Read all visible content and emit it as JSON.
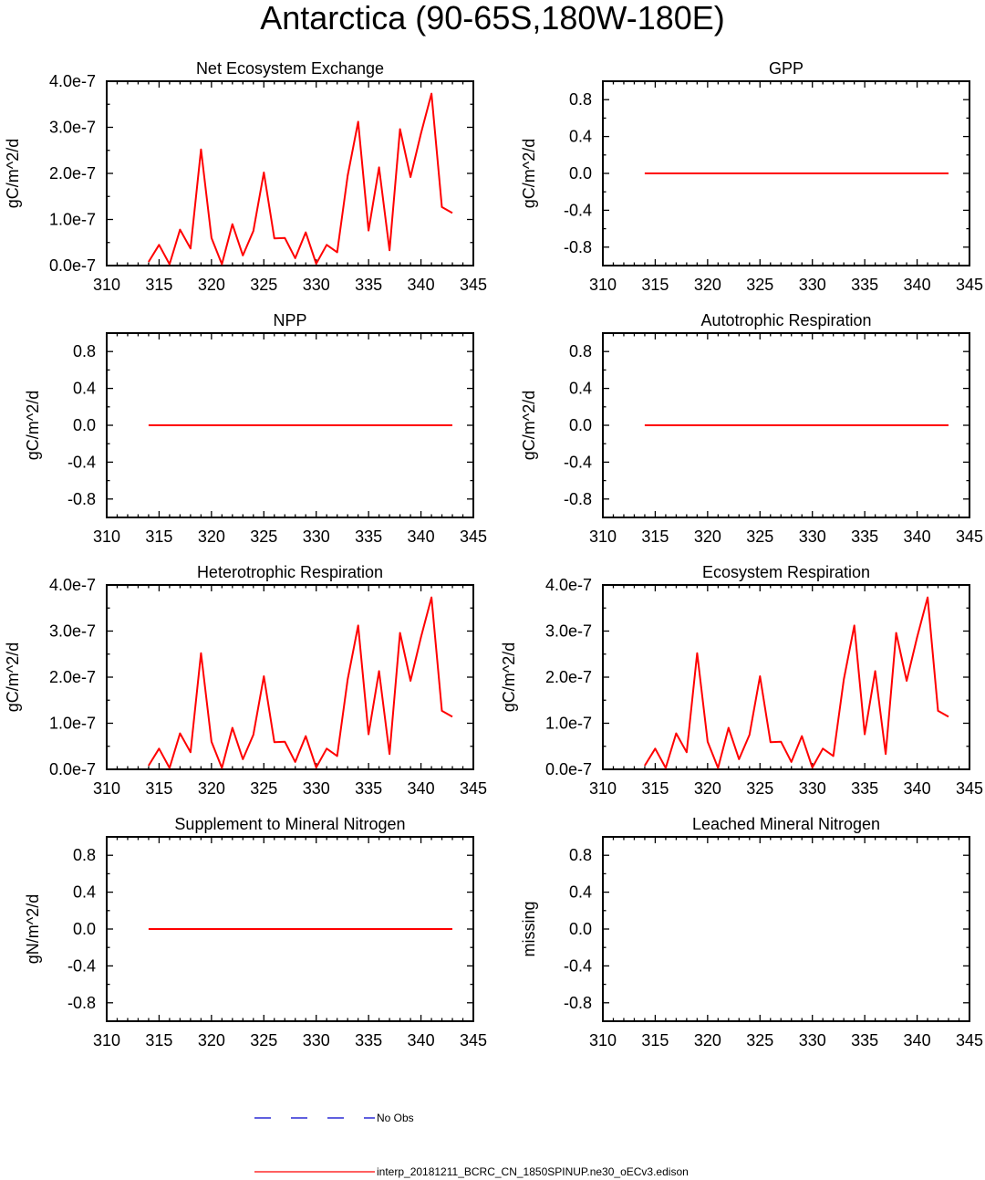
{
  "page_title": "Antarctica (90-65S,180W-180E)",
  "colors": {
    "model_line": "#ff0000",
    "obs_line": "#0000cc",
    "axis": "#000000"
  },
  "legend": {
    "entries": [
      {
        "label": "No Obs",
        "style": "dashed",
        "color": "#0000cc"
      },
      {
        "label": "interp_20181211_BCRC_CN_1850SPINUP.ne30_oECv3.edison",
        "style": "solid",
        "color": "#ff0000"
      }
    ]
  },
  "chart_data": [
    {
      "type": "line",
      "title": "Net Ecosystem Exchange",
      "ylabel": "gC/m^2/d",
      "xlim": [
        310,
        345
      ],
      "xticks": [
        "310",
        "315",
        "320",
        "325",
        "330",
        "335",
        "340",
        "345"
      ],
      "ylim": [
        0,
        4e-07
      ],
      "yticks": [
        "0.0e-7",
        "1.0e-7",
        "2.0e-7",
        "3.0e-7",
        "4.0e-7"
      ],
      "ytick_values": [
        0,
        1e-07,
        2e-07,
        3e-07,
        4e-07
      ],
      "x": [
        314,
        315,
        316,
        317,
        318,
        319,
        320,
        321,
        322,
        323,
        324,
        325,
        326,
        327,
        328,
        329,
        330,
        331,
        332,
        333,
        334,
        335,
        336,
        337,
        338,
        339,
        340,
        341,
        342,
        343
      ],
      "series": [
        {
          "values": [
            8e-09,
            4.5e-08,
            3e-09,
            7.8e-08,
            3.7e-08,
            2.52e-07,
            6e-08,
            3e-09,
            9e-08,
            2.2e-08,
            7.5e-08,
            2.02e-07,
            5.9e-08,
            6e-08,
            1.6e-08,
            7.2e-08,
            4e-09,
            4.5e-08,
            2.9e-08,
            1.95e-07,
            3.12e-07,
            7.6e-08,
            2.13e-07,
            3.3e-08,
            2.96e-07,
            1.92e-07,
            2.87e-07,
            3.73e-07,
            1.27e-07,
            1.14e-07
          ]
        }
      ]
    },
    {
      "type": "line",
      "title": "GPP",
      "ylabel": "gC/m^2/d",
      "xlim": [
        310,
        345
      ],
      "xticks": [
        "310",
        "315",
        "320",
        "325",
        "330",
        "335",
        "340",
        "345"
      ],
      "ylim": [
        -1,
        1
      ],
      "yticks": [
        "-0.8",
        "-0.4",
        "0.0",
        "0.4",
        "0.8"
      ],
      "ytick_values": [
        -0.8,
        -0.4,
        0,
        0.4,
        0.8
      ],
      "x": [
        314,
        343
      ],
      "series": [
        {
          "values": [
            0,
            0
          ]
        }
      ]
    },
    {
      "type": "line",
      "title": "NPP",
      "ylabel": "gC/m^2/d",
      "xlim": [
        310,
        345
      ],
      "xticks": [
        "310",
        "315",
        "320",
        "325",
        "330",
        "335",
        "340",
        "345"
      ],
      "ylim": [
        -1,
        1
      ],
      "yticks": [
        "-0.8",
        "-0.4",
        "0.0",
        "0.4",
        "0.8"
      ],
      "ytick_values": [
        -0.8,
        -0.4,
        0,
        0.4,
        0.8
      ],
      "x": [
        314,
        343
      ],
      "series": [
        {
          "values": [
            0,
            0
          ]
        }
      ]
    },
    {
      "type": "line",
      "title": "Autotrophic Respiration",
      "ylabel": "gC/m^2/d",
      "xlim": [
        310,
        345
      ],
      "xticks": [
        "310",
        "315",
        "320",
        "325",
        "330",
        "335",
        "340",
        "345"
      ],
      "ylim": [
        -1,
        1
      ],
      "yticks": [
        "-0.8",
        "-0.4",
        "0.0",
        "0.4",
        "0.8"
      ],
      "ytick_values": [
        -0.8,
        -0.4,
        0,
        0.4,
        0.8
      ],
      "x": [
        314,
        343
      ],
      "series": [
        {
          "values": [
            0,
            0
          ]
        }
      ]
    },
    {
      "type": "line",
      "title": "Heterotrophic Respiration",
      "ylabel": "gC/m^2/d",
      "xlim": [
        310,
        345
      ],
      "xticks": [
        "310",
        "315",
        "320",
        "325",
        "330",
        "335",
        "340",
        "345"
      ],
      "ylim": [
        0,
        4e-07
      ],
      "yticks": [
        "0.0e-7",
        "1.0e-7",
        "2.0e-7",
        "3.0e-7",
        "4.0e-7"
      ],
      "ytick_values": [
        0,
        1e-07,
        2e-07,
        3e-07,
        4e-07
      ],
      "x": [
        314,
        315,
        316,
        317,
        318,
        319,
        320,
        321,
        322,
        323,
        324,
        325,
        326,
        327,
        328,
        329,
        330,
        331,
        332,
        333,
        334,
        335,
        336,
        337,
        338,
        339,
        340,
        341,
        342,
        343
      ],
      "series": [
        {
          "values": [
            8e-09,
            4.5e-08,
            3e-09,
            7.8e-08,
            3.7e-08,
            2.52e-07,
            6e-08,
            3e-09,
            9e-08,
            2.2e-08,
            7.5e-08,
            2.02e-07,
            5.9e-08,
            6e-08,
            1.6e-08,
            7.2e-08,
            4e-09,
            4.5e-08,
            2.9e-08,
            1.95e-07,
            3.12e-07,
            7.6e-08,
            2.13e-07,
            3.3e-08,
            2.96e-07,
            1.92e-07,
            2.87e-07,
            3.73e-07,
            1.27e-07,
            1.14e-07
          ]
        }
      ]
    },
    {
      "type": "line",
      "title": "Ecosystem Respiration",
      "ylabel": "gC/m^2/d",
      "xlim": [
        310,
        345
      ],
      "xticks": [
        "310",
        "315",
        "320",
        "325",
        "330",
        "335",
        "340",
        "345"
      ],
      "ylim": [
        0,
        4e-07
      ],
      "yticks": [
        "0.0e-7",
        "1.0e-7",
        "2.0e-7",
        "3.0e-7",
        "4.0e-7"
      ],
      "ytick_values": [
        0,
        1e-07,
        2e-07,
        3e-07,
        4e-07
      ],
      "x": [
        314,
        315,
        316,
        317,
        318,
        319,
        320,
        321,
        322,
        323,
        324,
        325,
        326,
        327,
        328,
        329,
        330,
        331,
        332,
        333,
        334,
        335,
        336,
        337,
        338,
        339,
        340,
        341,
        342,
        343
      ],
      "series": [
        {
          "values": [
            8e-09,
            4.5e-08,
            3e-09,
            7.8e-08,
            3.7e-08,
            2.52e-07,
            6e-08,
            3e-09,
            9e-08,
            2.2e-08,
            7.5e-08,
            2.02e-07,
            5.9e-08,
            6e-08,
            1.6e-08,
            7.2e-08,
            4e-09,
            4.5e-08,
            2.9e-08,
            1.95e-07,
            3.12e-07,
            7.6e-08,
            2.13e-07,
            3.3e-08,
            2.96e-07,
            1.92e-07,
            2.87e-07,
            3.73e-07,
            1.27e-07,
            1.14e-07
          ]
        }
      ]
    },
    {
      "type": "line",
      "title": "Supplement to Mineral Nitrogen",
      "ylabel": "gN/m^2/d",
      "xlim": [
        310,
        345
      ],
      "xticks": [
        "310",
        "315",
        "320",
        "325",
        "330",
        "335",
        "340",
        "345"
      ],
      "ylim": [
        -1,
        1
      ],
      "yticks": [
        "-0.8",
        "-0.4",
        "0.0",
        "0.4",
        "0.8"
      ],
      "ytick_values": [
        -0.8,
        -0.4,
        0,
        0.4,
        0.8
      ],
      "x": [
        314,
        343
      ],
      "series": [
        {
          "values": [
            0,
            0
          ]
        }
      ]
    },
    {
      "type": "line",
      "title": "Leached Mineral Nitrogen",
      "ylabel": "missing",
      "xlim": [
        310,
        345
      ],
      "xticks": [
        "310",
        "315",
        "320",
        "325",
        "330",
        "335",
        "340",
        "345"
      ],
      "ylim": [
        -1,
        1
      ],
      "yticks": [
        "-0.8",
        "-0.4",
        "0.0",
        "0.4",
        "0.8"
      ],
      "ytick_values": [
        -0.8,
        -0.4,
        0,
        0.4,
        0.8
      ],
      "x": [],
      "series": []
    }
  ]
}
